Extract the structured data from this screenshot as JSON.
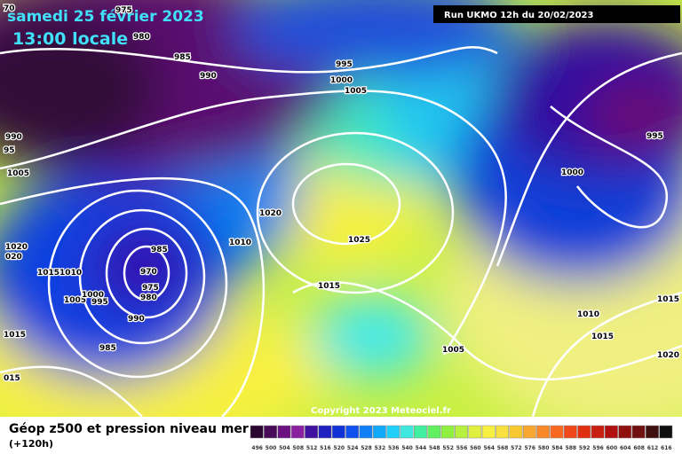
{
  "header": {
    "title": "samedi 25 février 2023",
    "subtitle": "13:00 locale",
    "run": "Run UKMO 12h du 20/02/2023"
  },
  "copyright": "Copyright 2023 Meteociel.fr",
  "legend": {
    "title": "Géop z500 et pression niveau mer",
    "lead": "(+120h)",
    "labels": [
      496,
      500,
      504,
      508,
      512,
      516,
      520,
      524,
      528,
      532,
      536,
      540,
      544,
      548,
      552,
      556,
      560,
      564,
      568,
      572,
      576,
      580,
      584,
      588,
      592,
      596,
      600,
      604,
      608,
      612,
      616
    ],
    "colors": [
      "#2a0630",
      "#4a0a5a",
      "#6a1080",
      "#8a20a0",
      "#4010a0",
      "#2020c0",
      "#1030d8",
      "#1050f0",
      "#1080f8",
      "#10a8f8",
      "#20d0f8",
      "#40e8e0",
      "#40f0a0",
      "#60f060",
      "#90f040",
      "#b8f040",
      "#e0f040",
      "#f8f040",
      "#f8e040",
      "#f8c830",
      "#f8a830",
      "#f88828",
      "#f86820",
      "#f04818",
      "#e03010",
      "#c82010",
      "#b01010",
      "#901010",
      "#701010",
      "#401010",
      "#101010"
    ]
  },
  "isobar_labels": [
    "70",
    975,
    980,
    985,
    990,
    995,
    1000,
    1005,
    990,
    "95",
    1005,
    1020,
    "020",
    "10151010",
    1005,
    1000,
    995,
    985,
    970,
    975,
    980,
    990,
    985,
    1015,
    "015",
    1010,
    1020,
    1025,
    1015,
    1005,
    1000,
    995,
    1010,
    1015,
    1015,
    1020
  ]
}
